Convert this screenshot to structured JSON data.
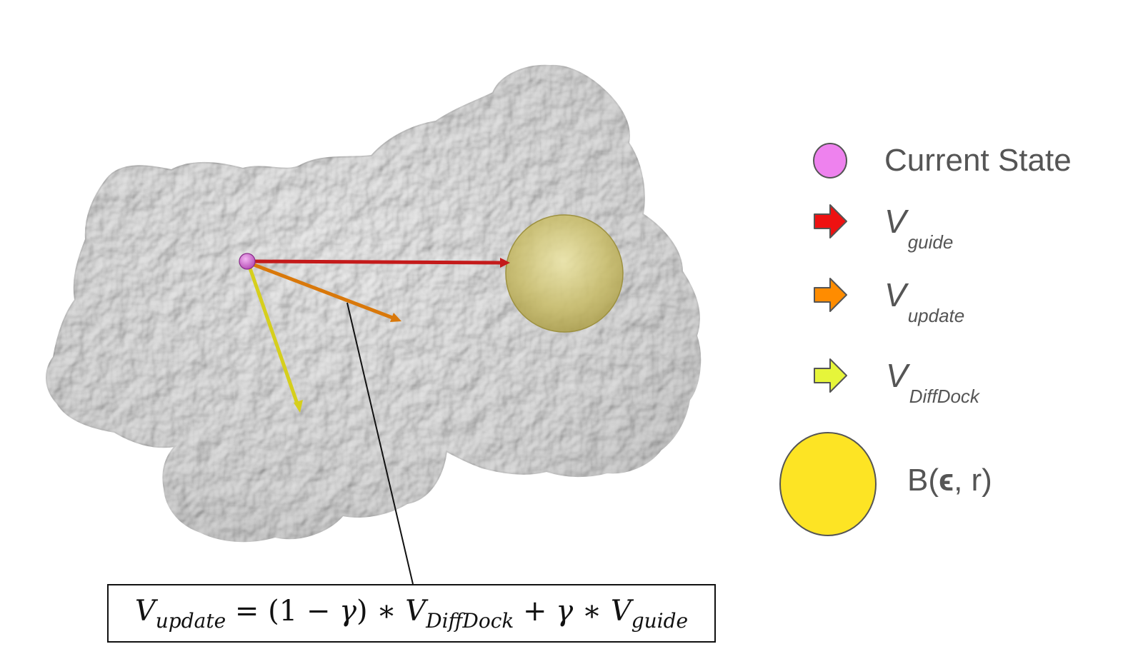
{
  "legend": {
    "current_state": {
      "label": "Current State",
      "color": "#ee82ee"
    },
    "v_guide": {
      "symbol": "V",
      "subscript": "guide",
      "color": "#ee1111"
    },
    "v_update": {
      "symbol": "V",
      "subscript": "update",
      "color": "#ff8c00"
    },
    "v_diffdock": {
      "symbol": "V",
      "subscript": "DiffDock",
      "color": "#e6f53a"
    },
    "ball": {
      "label_prefix": "B(",
      "epsilon": "ϵ",
      "label_suffix": ", r)",
      "color": "#fde424"
    }
  },
  "formula": {
    "lhs": "V",
    "lhs_sub": "update",
    "eq": " = (1 − ",
    "gamma": "γ",
    "mid1": ") ∗ ",
    "v2": "V",
    "v2_sub": "DiffDock",
    "plus": " + ",
    "gamma2": "γ",
    "star": " ∗ ",
    "v3": "V",
    "v3_sub": "guide"
  },
  "icons": {
    "protein": "protein-surface-icon",
    "target": "target-ball-icon",
    "state": "current-state-dot-icon"
  }
}
